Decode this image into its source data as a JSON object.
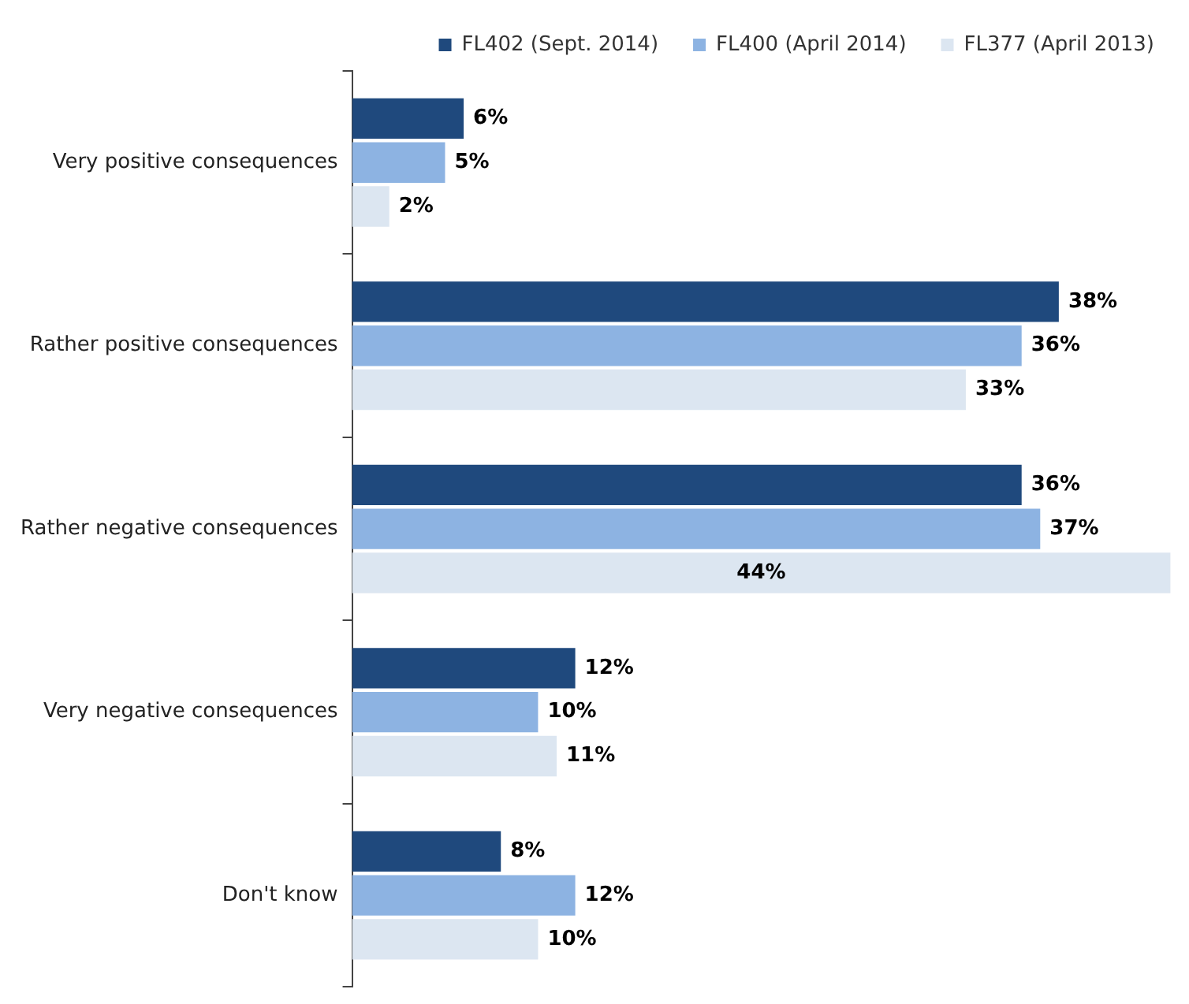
{
  "chart_data": {
    "type": "bar",
    "orientation": "horizontal",
    "categories": [
      "Very positive consequences",
      "Rather positive consequences",
      "Rather negative consequences",
      "Very negative consequences",
      "Don't know"
    ],
    "series": [
      {
        "name": "FL402 (Sept. 2014)",
        "color": "#1f497d",
        "values": [
          6,
          38,
          36,
          12,
          8
        ],
        "value_labels": [
          "6%",
          "38%",
          "36%",
          "12%",
          "8%"
        ]
      },
      {
        "name": "FL400 (April 2014)",
        "color": "#8db3e2",
        "values": [
          5,
          36,
          37,
          10,
          12
        ],
        "value_labels": [
          "5%",
          "36%",
          "37%",
          "10%",
          "12%"
        ]
      },
      {
        "name": "FL377 (April 2013)",
        "color": "#dce6f1",
        "values": [
          2,
          33,
          44,
          11,
          10
        ],
        "value_labels": [
          "2%",
          "33%",
          "44%",
          "11%",
          "10%"
        ]
      }
    ],
    "legend": "top",
    "grid": false
  }
}
